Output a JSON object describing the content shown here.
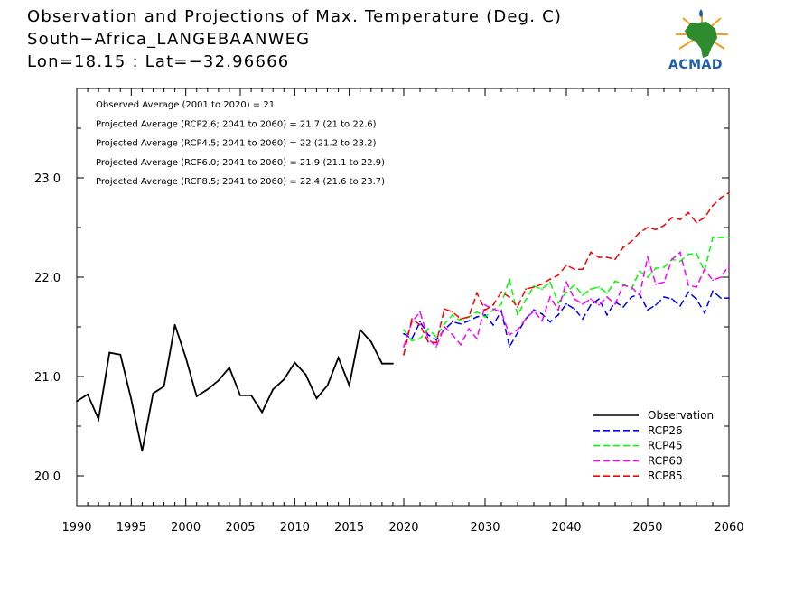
{
  "header": {
    "title_line1": "Observation and Projections of Max. Temperature (Deg. C)",
    "title_line2": "South−Africa_LANGEBAANWEG",
    "title_line3": "Lon=18.15 : Lat=−32.96666"
  },
  "logo": {
    "text": "ACMAD",
    "icon": "africa-map-logo-icon"
  },
  "annotations": [
    "Observed Average (2001 to 2020) = 21",
    "Projected Average (RCP2.6; 2041 to 2060) = 21.7 (21 to 22.6)",
    "Projected Average (RCP4.5; 2041 to 2060) = 22 (21.2 to 23.2)",
    "Projected Average (RCP6.0; 2041 to 2060) = 21.9 (21.1 to 22.9)",
    "Projected Average (RCP8.5; 2041 to 2060) = 22.4 (21.6 to 23.7)"
  ],
  "chart_data": {
    "type": "line",
    "xlim": [
      1990,
      2060
    ],
    "ylim": [
      19.7,
      23.9
    ],
    "x_ticks": [
      "1990",
      "1995",
      "2000",
      "2005",
      "2010",
      "2015",
      "2020",
      "2030",
      "2040",
      "2050",
      "2060"
    ],
    "x_tick_values": [
      1990,
      1995,
      2000,
      2005,
      2010,
      2015,
      2020,
      2030,
      2040,
      2050,
      2060
    ],
    "y_ticks": [
      "20.0",
      "21.0",
      "22.0",
      "23.0"
    ],
    "y_tick_values": [
      20.0,
      21.0,
      22.0,
      23.0
    ],
    "legend_position": "bottom-right",
    "series": [
      {
        "name": "Observation",
        "color": "#000000",
        "dash": "solid",
        "x": [
          1990,
          1991,
          1992,
          1993,
          1994,
          1995,
          1996,
          1997,
          1998,
          1999,
          2000,
          2001,
          2002,
          2003,
          2004,
          2005,
          2006,
          2007,
          2008,
          2009,
          2010,
          2011,
          2012,
          2013,
          2014,
          2015,
          2016,
          2017,
          2018,
          2019
        ],
        "y": [
          20.75,
          20.82,
          20.57,
          21.24,
          21.22,
          20.77,
          20.25,
          20.83,
          20.9,
          21.52,
          21.19,
          20.8,
          20.87,
          20.96,
          21.09,
          20.81,
          20.81,
          20.64,
          20.87,
          20.97,
          21.14,
          21.02,
          20.78,
          20.91,
          21.19,
          20.91,
          21.47,
          21.35,
          21.13,
          21.13
        ]
      },
      {
        "name": "RCP26",
        "color": "#0000ff",
        "dash": "dashed",
        "x": [
          2020,
          2021,
          2022,
          2023,
          2024,
          2025,
          2026,
          2027,
          2028,
          2029,
          2030,
          2031,
          2032,
          2033,
          2034,
          2035,
          2036,
          2037,
          2038,
          2039,
          2040,
          2041,
          2042,
          2043,
          2044,
          2045,
          2046,
          2047,
          2048,
          2049,
          2050,
          2051,
          2052,
          2053,
          2054,
          2055,
          2056,
          2057,
          2058,
          2059,
          2060
        ],
        "y": [
          21.43,
          21.38,
          21.55,
          21.42,
          21.37,
          21.47,
          21.55,
          21.53,
          21.56,
          21.6,
          21.62,
          21.52,
          21.66,
          21.3,
          21.44,
          21.58,
          21.67,
          21.63,
          21.55,
          21.62,
          21.73,
          21.68,
          21.58,
          21.72,
          21.78,
          21.62,
          21.75,
          21.7,
          21.8,
          21.83,
          21.67,
          21.72,
          21.8,
          21.78,
          21.71,
          21.85,
          21.78,
          21.64,
          21.86,
          21.79,
          21.79
        ]
      },
      {
        "name": "RCP45",
        "color": "#00ff00",
        "dash": "dashed",
        "x": [
          2020,
          2021,
          2022,
          2023,
          2024,
          2025,
          2026,
          2027,
          2028,
          2029,
          2030,
          2031,
          2032,
          2033,
          2034,
          2035,
          2036,
          2037,
          2038,
          2039,
          2040,
          2041,
          2042,
          2043,
          2044,
          2045,
          2046,
          2047,
          2048,
          2049,
          2050,
          2051,
          2052,
          2053,
          2054,
          2055,
          2056,
          2057,
          2058,
          2059,
          2060
        ],
        "y": [
          21.47,
          21.36,
          21.38,
          21.48,
          21.4,
          21.53,
          21.62,
          21.56,
          21.6,
          21.65,
          21.6,
          21.67,
          21.73,
          21.98,
          21.62,
          21.77,
          21.91,
          21.88,
          21.95,
          21.74,
          21.85,
          21.92,
          21.82,
          21.88,
          21.9,
          21.84,
          21.96,
          21.93,
          21.88,
          22.06,
          22.0,
          22.09,
          22.1,
          22.18,
          22.16,
          22.23,
          22.24,
          22.06,
          22.4,
          22.4,
          22.4
        ]
      },
      {
        "name": "RCP60",
        "color": "#ff00ff",
        "dash": "dashed",
        "x": [
          2020,
          2021,
          2022,
          2023,
          2024,
          2025,
          2026,
          2027,
          2028,
          2029,
          2030,
          2031,
          2032,
          2033,
          2034,
          2035,
          2036,
          2037,
          2038,
          2039,
          2040,
          2041,
          2042,
          2043,
          2044,
          2045,
          2046,
          2047,
          2048,
          2049,
          2050,
          2051,
          2052,
          2053,
          2054,
          2055,
          2056,
          2057,
          2058,
          2059,
          2060
        ],
        "y": [
          21.3,
          21.55,
          21.65,
          21.38,
          21.3,
          21.5,
          21.42,
          21.32,
          21.48,
          21.38,
          21.72,
          21.68,
          21.65,
          21.42,
          21.47,
          21.58,
          21.66,
          21.56,
          21.8,
          21.67,
          21.95,
          21.78,
          21.73,
          21.78,
          21.72,
          21.8,
          21.73,
          21.92,
          21.9,
          21.82,
          22.2,
          21.93,
          21.95,
          22.18,
          22.25,
          21.92,
          21.9,
          22.08,
          21.97,
          22.0,
          22.12
        ]
      },
      {
        "name": "RCP85",
        "color": "#ff0000",
        "dash": "dashed",
        "x": [
          2020,
          2021,
          2022,
          2023,
          2024,
          2025,
          2026,
          2027,
          2028,
          2029,
          2030,
          2031,
          2032,
          2033,
          2034,
          2035,
          2036,
          2037,
          2038,
          2039,
          2040,
          2041,
          2042,
          2043,
          2044,
          2045,
          2046,
          2047,
          2048,
          2049,
          2050,
          2051,
          2052,
          2053,
          2054,
          2055,
          2056,
          2057,
          2058,
          2059,
          2060
        ],
        "y": [
          21.22,
          21.58,
          21.52,
          21.35,
          21.34,
          21.68,
          21.65,
          21.58,
          21.6,
          21.84,
          21.67,
          21.72,
          21.85,
          21.8,
          21.7,
          21.88,
          21.9,
          21.93,
          21.98,
          22.02,
          22.12,
          22.08,
          22.08,
          22.25,
          22.2,
          22.2,
          22.18,
          22.3,
          22.36,
          22.45,
          22.5,
          22.48,
          22.52,
          22.6,
          22.58,
          22.65,
          22.55,
          22.6,
          22.72,
          22.8,
          22.85
        ]
      }
    ]
  }
}
